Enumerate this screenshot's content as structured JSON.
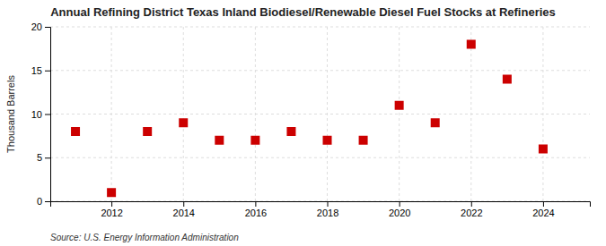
{
  "chart_data": {
    "type": "scatter",
    "title": "Annual Refining District Texas Inland Biodiesel/Renewable Diesel Fuel Stocks at Refineries",
    "ylabel": "Thousand Barrels",
    "source": "Source: U.S. Energy Information Administration",
    "x": [
      2011,
      2012,
      2013,
      2014,
      2015,
      2016,
      2017,
      2018,
      2019,
      2020,
      2021,
      2022,
      2023,
      2024
    ],
    "values": [
      8.0,
      1.0,
      8.0,
      9.0,
      7.0,
      7.0,
      8.0,
      7.0,
      7.0,
      11.0,
      9.0,
      18.0,
      14.0,
      6.0
    ],
    "color": "#cc0000",
    "marker": "square",
    "xlim": [
      2010.3,
      2025.3
    ],
    "xticks": [
      2012,
      2014,
      2016,
      2018,
      2020,
      2022,
      2024
    ],
    "ylim": [
      0,
      20
    ],
    "yticks": [
      0,
      5,
      10,
      15,
      20
    ],
    "grid": true
  }
}
